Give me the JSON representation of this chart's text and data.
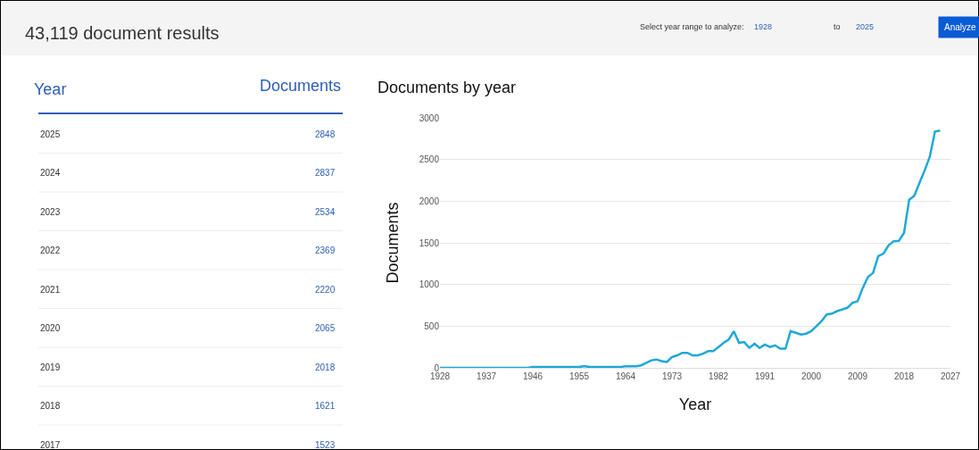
{
  "chart_data": {
    "type": "line",
    "title": "Documents by year",
    "xlabel": "Year",
    "ylabel": "Documents",
    "annotations": [
      "43,119 document results",
      "Select year range to analyze:",
      "1928",
      "to",
      "2025",
      "Analyze",
      "Year",
      "Documents",
      "2025",
      "2848",
      "2024",
      "2837",
      "2023",
      "2534",
      "2022",
      "2369",
      "2021",
      "2220",
      "2020",
      "2065",
      "2019",
      "2018",
      "2018",
      "1621",
      "2017",
      "1523"
    ],
    "x": [
      1928,
      1929,
      1930,
      1931,
      1932,
      1933,
      1934,
      1935,
      1936,
      1937,
      1938,
      1939,
      1940,
      1941,
      1942,
      1943,
      1944,
      1945,
      1946,
      1947,
      1948,
      1949,
      1950,
      1951,
      1952,
      1953,
      1954,
      1955,
      1956,
      1957,
      1958,
      1959,
      1960,
      1961,
      1962,
      1963,
      1964,
      1965,
      1966,
      1967,
      1968,
      1969,
      1970,
      1971,
      1972,
      1973,
      1974,
      1975,
      1976,
      1977,
      1978,
      1979,
      1980,
      1981,
      1982,
      1983,
      1984,
      1985,
      1986,
      1987,
      1988,
      1989,
      1990,
      1991,
      1992,
      1993,
      1994,
      1995,
      1996,
      1997,
      1998,
      1999,
      2000,
      2001,
      2002,
      2003,
      2004,
      2005,
      2006,
      2007,
      2008,
      2009,
      2010,
      2011,
      2012,
      2013,
      2014,
      2015,
      2016,
      2017,
      2018,
      2019,
      2020,
      2021,
      2022,
      2023,
      2024,
      2025
    ],
    "series": [
      {
        "color": "#1fa8d8",
        "values": [
          0,
          0,
          0,
          0,
          0,
          0,
          0,
          0,
          0,
          0,
          0,
          0,
          0,
          0,
          0,
          0,
          0,
          0,
          10,
          10,
          10,
          10,
          10,
          10,
          10,
          10,
          10,
          10,
          20,
          10,
          10,
          10,
          10,
          10,
          10,
          10,
          20,
          20,
          20,
          30,
          60,
          90,
          100,
          80,
          70,
          130,
          150,
          180,
          180,
          150,
          150,
          170,
          200,
          200,
          250,
          300,
          340,
          440,
          300,
          310,
          240,
          290,
          240,
          280,
          250,
          270,
          230,
          230,
          440,
          420,
          400,
          410,
          440,
          500,
          560,
          640,
          650,
          680,
          700,
          720,
          780,
          800,
          960,
          1090,
          1140,
          1340,
          1370,
          1470,
          1520,
          1523,
          1621,
          2018,
          2065,
          2220,
          2369,
          2534,
          2837,
          2848
        ]
      }
    ],
    "xlim": [
      1928,
      2027
    ],
    "xticks": [
      1928,
      1937,
      1946,
      1955,
      1964,
      1973,
      1982,
      1991,
      2000,
      2009,
      2018,
      2027
    ],
    "ylim": [
      0,
      3000
    ],
    "yticks": [
      0,
      500,
      1000,
      1500,
      2000,
      2500,
      3000
    ],
    "grid": "y",
    "marker": "none",
    "line_style": "solid"
  }
}
